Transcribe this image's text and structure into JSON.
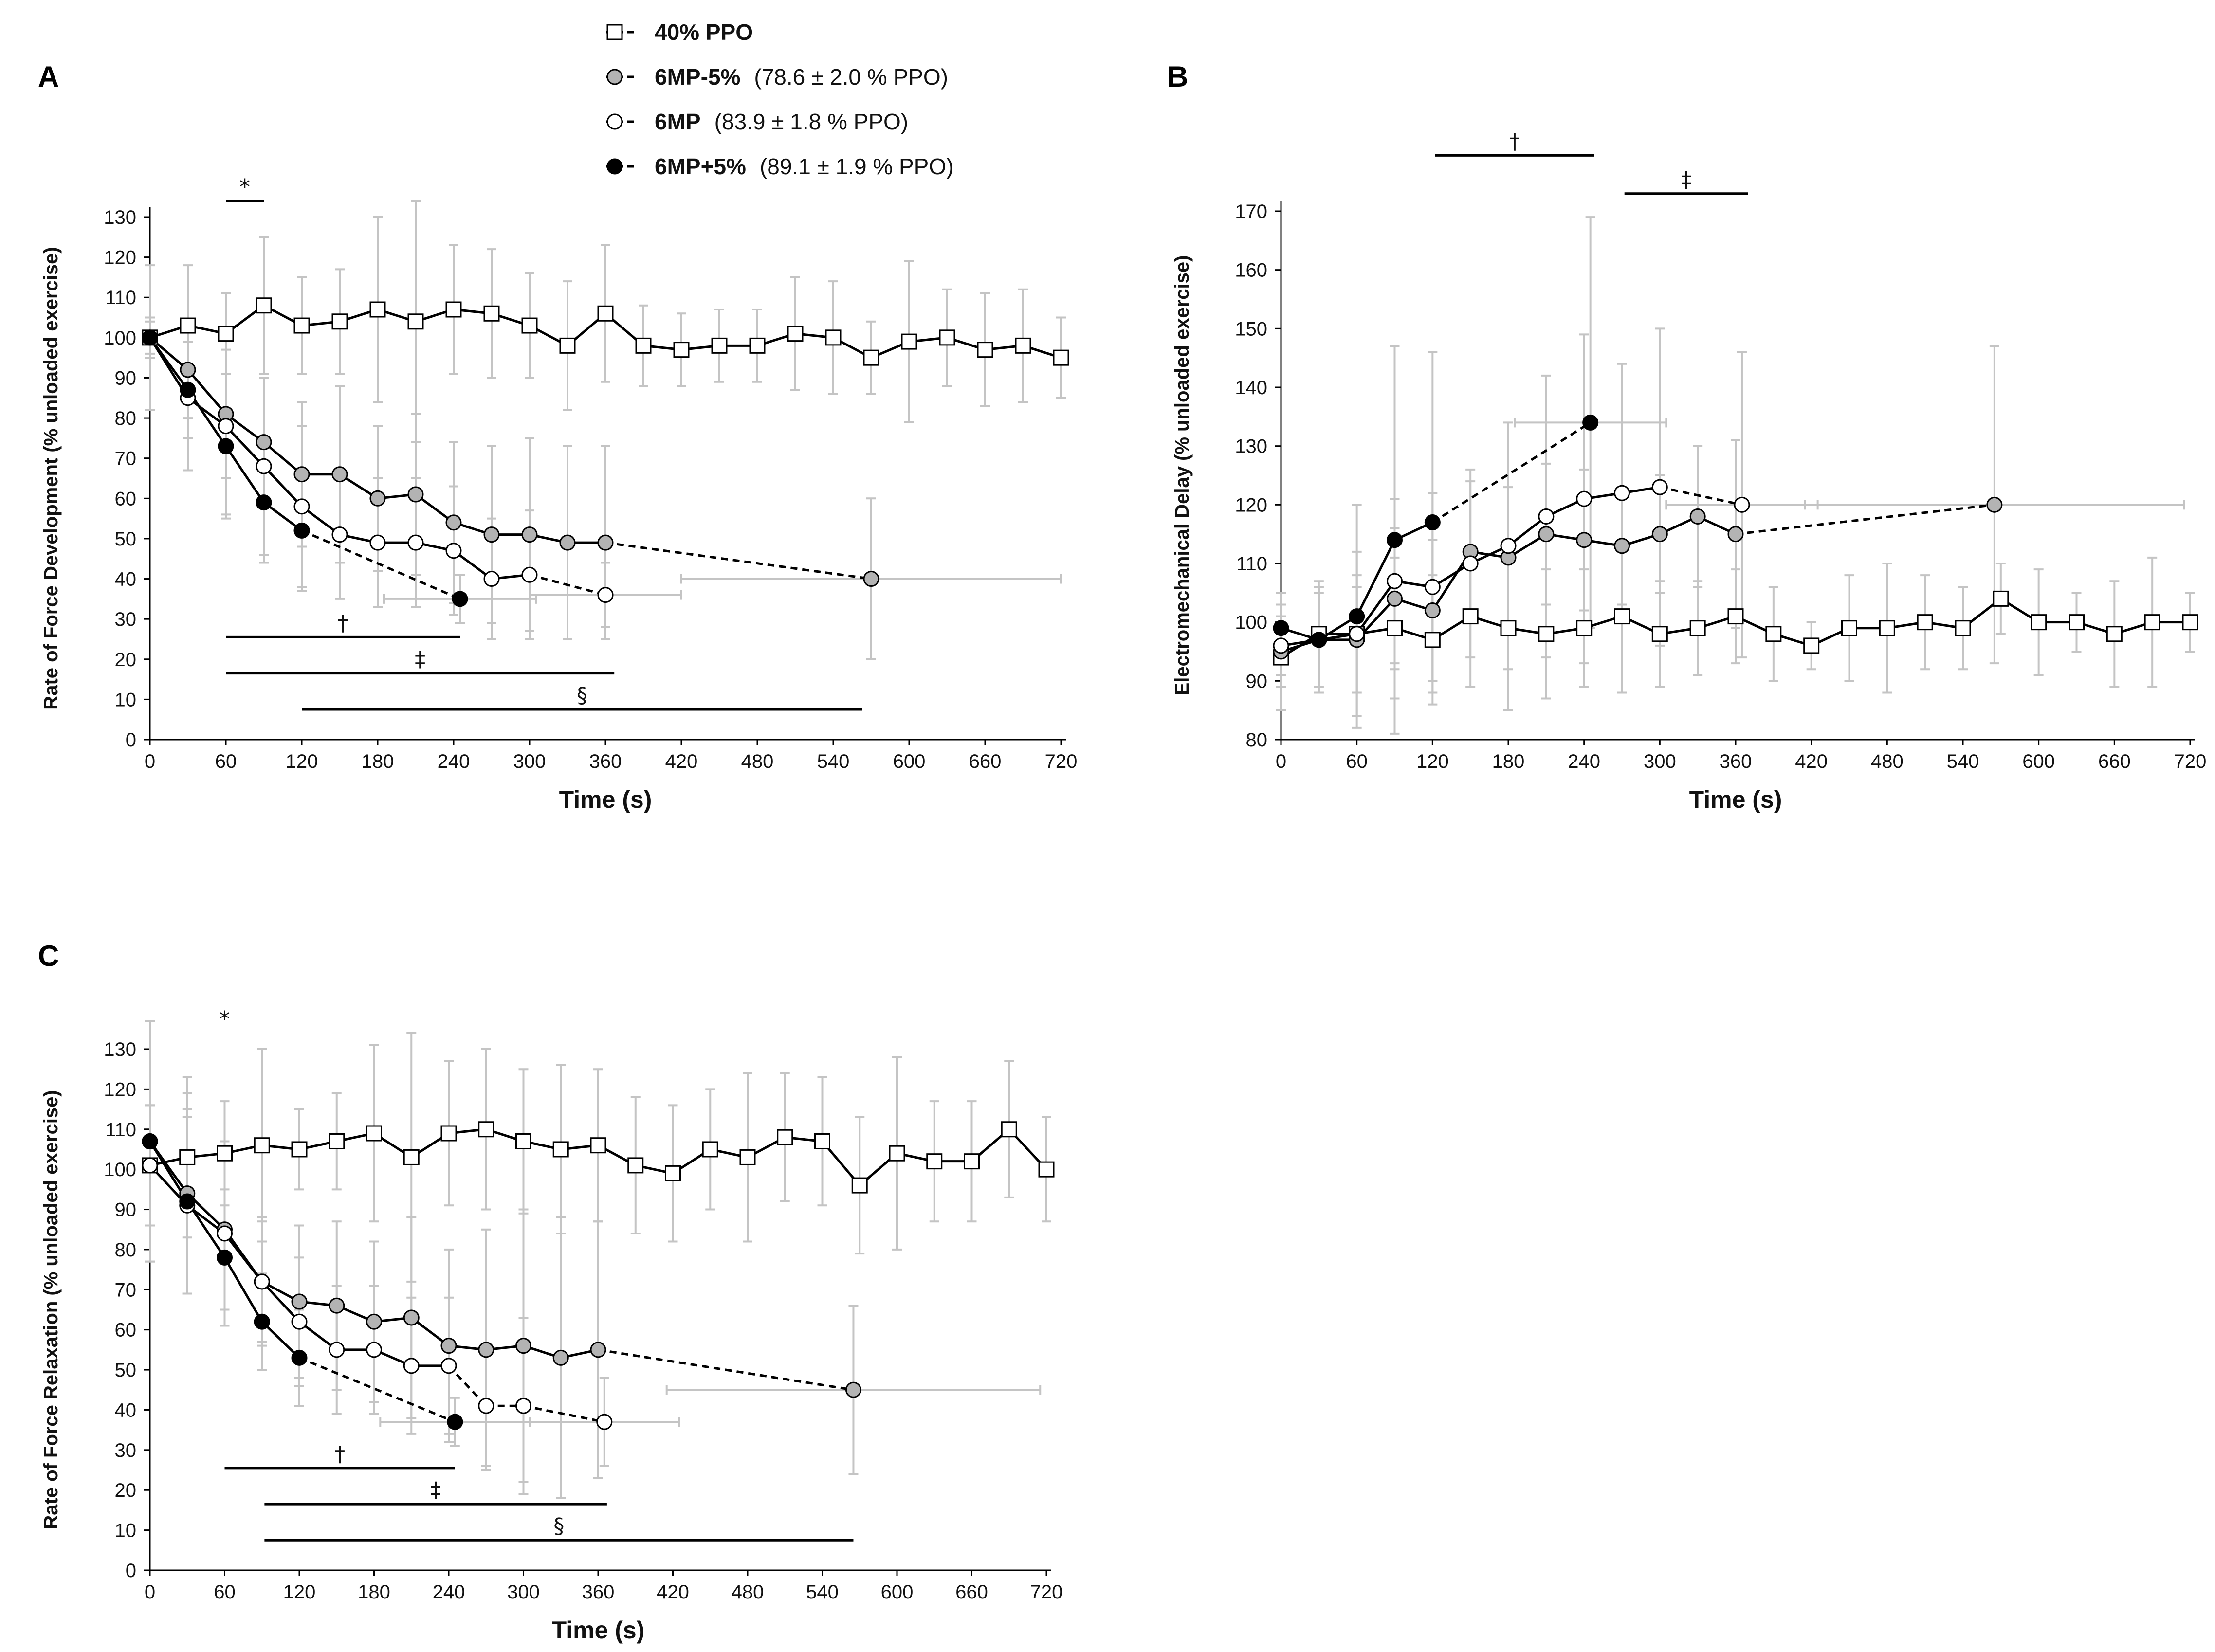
{
  "legend": [
    {
      "key": "ppo40",
      "name": "40% PPO",
      "desc": "",
      "marker": "square",
      "fill": "#ffffff"
    },
    {
      "key": "m5",
      "name": "6MP-5%",
      "desc": "(78.6 ± 2.0 % PPO)",
      "marker": "circle",
      "fill": "#b3b3b3"
    },
    {
      "key": "mp",
      "name": "6MP",
      "desc": "(83.9 ± 1.8 % PPO)",
      "marker": "circle",
      "fill": "#ffffff"
    },
    {
      "key": "p5",
      "name": "6MP+5%",
      "desc": "(89.1 ± 1.9 % PPO)",
      "marker": "circle",
      "fill": "#000000"
    }
  ],
  "colors": {
    "line": "#000000",
    "error_bar": "#c4c4c4",
    "gray_marker": "#b3b3b3"
  },
  "chart_data": [
    {
      "panel": "A",
      "type": "line",
      "xlabel": "Time (s)",
      "ylabel": "Rate of Force Development (% unloaded exercise)",
      "xlim": [
        0,
        720
      ],
      "ylim": [
        0,
        130
      ],
      "xticks": [
        "0",
        "60",
        "120",
        "180",
        "240",
        "300",
        "360",
        "420",
        "480",
        "540",
        "600",
        "660",
        "720"
      ],
      "yticks": [
        "0",
        "10",
        "20",
        "30",
        "40",
        "50",
        "60",
        "70",
        "80",
        "90",
        "100",
        "110",
        "120",
        "130"
      ],
      "series": [
        {
          "key": "ppo40",
          "x": [
            0,
            30,
            60,
            90,
            120,
            150,
            180,
            210,
            240,
            270,
            300,
            330,
            360,
            390,
            420,
            450,
            480,
            510,
            540,
            570,
            600,
            630,
            660,
            690,
            720
          ],
          "y": [
            100,
            103,
            101,
            108,
            103,
            104,
            107,
            104,
            107,
            106,
            103,
            98,
            106,
            98,
            97,
            98,
            98,
            101,
            100,
            95,
            99,
            100,
            97,
            98,
            95
          ],
          "err": [
            18,
            15,
            10,
            17,
            12,
            13,
            23,
            30,
            16,
            16,
            13,
            16,
            17,
            10,
            9,
            9,
            9,
            14,
            14,
            9,
            20,
            12,
            14,
            14,
            10
          ]
        },
        {
          "key": "m5",
          "x": [
            0,
            30,
            60,
            90,
            120,
            150,
            180,
            210,
            240,
            270,
            300,
            330,
            360,
            570
          ],
          "y": [
            100,
            92,
            81,
            74,
            66,
            66,
            60,
            61,
            54,
            51,
            51,
            49,
            49,
            40
          ],
          "err": [
            5,
            12,
            16,
            16,
            18,
            22,
            18,
            20,
            20,
            22,
            24,
            24,
            24,
            20
          ],
          "dashed_from": 360,
          "xerr_last": 150
        },
        {
          "key": "mp",
          "x": [
            0,
            30,
            60,
            90,
            120,
            150,
            180,
            210,
            240,
            270,
            300,
            360
          ],
          "y": [
            100,
            85,
            78,
            68,
            58,
            51,
            49,
            49,
            47,
            40,
            41,
            36
          ],
          "err": [
            5,
            18,
            22,
            22,
            20,
            16,
            16,
            16,
            16,
            15,
            16,
            8
          ],
          "dashed_from": 300,
          "xerr_last": 60
        },
        {
          "key": "p5",
          "x": [
            0,
            30,
            60,
            90,
            120,
            245
          ],
          "y": [
            100,
            87,
            73,
            59,
            52,
            35
          ],
          "err": [
            4,
            12,
            18,
            15,
            15,
            6
          ],
          "dashed_from": 120,
          "xerr_last": 60
        }
      ],
      "annotations": [
        {
          "symbol": "*",
          "x1": 60,
          "x2": 90,
          "y": 134
        },
        {
          "symbol": "†",
          "x1": 60,
          "x2": 245,
          "y": 25.5
        },
        {
          "symbol": "‡",
          "x1": 60,
          "x2": 367,
          "y": 16.5
        },
        {
          "symbol": "§",
          "x1": 120,
          "x2": 563,
          "y": 7.5
        }
      ]
    },
    {
      "panel": "B",
      "type": "line",
      "xlabel": "Time (s)",
      "ylabel": "Electromechanical Delay (% unloaded exercise)",
      "xlim": [
        0,
        720
      ],
      "ylim": [
        80,
        170
      ],
      "xticks": [
        "0",
        "60",
        "120",
        "180",
        "240",
        "300",
        "360",
        "420",
        "480",
        "540",
        "600",
        "660",
        "720"
      ],
      "yticks": [
        "80",
        "90",
        "100",
        "110",
        "120",
        "130",
        "140",
        "150",
        "160",
        "170"
      ],
      "series": [
        {
          "key": "ppo40",
          "x": [
            0,
            30,
            60,
            90,
            120,
            150,
            180,
            210,
            240,
            270,
            300,
            330,
            360,
            390,
            420,
            450,
            480,
            510,
            540,
            570,
            600,
            630,
            660,
            690,
            720
          ],
          "y": [
            94,
            98,
            98,
            99,
            97,
            101,
            99,
            98,
            99,
            101,
            98,
            99,
            101,
            98,
            96,
            99,
            99,
            100,
            99,
            104,
            100,
            100,
            98,
            100,
            100
          ],
          "err": [
            9,
            9,
            10,
            12,
            11,
            12,
            14,
            11,
            10,
            13,
            9,
            8,
            8,
            8,
            4,
            9,
            11,
            8,
            7,
            6,
            9,
            5,
            9,
            11,
            5
          ],
          "dashed_from": 999
        },
        {
          "key": "m5",
          "x": [
            0,
            30,
            60,
            90,
            120,
            150,
            180,
            210,
            240,
            270,
            300,
            330,
            360,
            565
          ],
          "y": [
            95,
            97,
            97,
            104,
            102,
            112,
            111,
            115,
            114,
            113,
            115,
            118,
            115,
            120
          ],
          "err": [
            6,
            8,
            9,
            12,
            12,
            12,
            12,
            12,
            12,
            10,
            10,
            12,
            16,
            27
          ],
          "dashed_from": 360,
          "xerr_last": 150
        },
        {
          "key": "mp",
          "x": [
            0,
            30,
            60,
            90,
            120,
            150,
            180,
            210,
            240,
            270,
            300,
            365
          ],
          "y": [
            96,
            97,
            98,
            107,
            106,
            110,
            113,
            118,
            121,
            122,
            123,
            120
          ],
          "err": [
            5,
            9,
            14,
            14,
            16,
            16,
            21,
            24,
            28,
            22,
            27,
            26
          ],
          "dashed_from": 300,
          "xerr_last": 60
        },
        {
          "key": "p5",
          "x": [
            0,
            30,
            60,
            90,
            120,
            245
          ],
          "y": [
            99,
            97,
            101,
            114,
            117,
            134
          ],
          "err": [
            6,
            9,
            19,
            33,
            29,
            35
          ],
          "dashed_from": 120,
          "xerr_last": 60
        }
      ],
      "annotations": [
        {
          "symbol": "†",
          "x1": 122,
          "x2": 248,
          "y": 179.5
        },
        {
          "symbol": "‡",
          "x1": 272,
          "x2": 370,
          "y": 173
        }
      ]
    },
    {
      "panel": "C",
      "type": "line",
      "xlabel": "Time (s)",
      "ylabel": "Rate of Force Relaxation (% unloaded exercise)",
      "xlim": [
        0,
        720
      ],
      "ylim": [
        0,
        130
      ],
      "xticks": [
        "0",
        "60",
        "120",
        "180",
        "240",
        "300",
        "360",
        "420",
        "480",
        "540",
        "600",
        "660",
        "720"
      ],
      "yticks": [
        "0",
        "10",
        "20",
        "30",
        "40",
        "50",
        "60",
        "70",
        "80",
        "90",
        "100",
        "110",
        "120",
        "130"
      ],
      "series": [
        {
          "key": "ppo40",
          "x": [
            0,
            30,
            60,
            90,
            120,
            150,
            180,
            210,
            240,
            270,
            300,
            330,
            360,
            390,
            420,
            450,
            480,
            510,
            540,
            570,
            600,
            630,
            660,
            690,
            720
          ],
          "y": [
            101,
            103,
            104,
            106,
            105,
            107,
            109,
            103,
            109,
            110,
            107,
            105,
            106,
            101,
            99,
            105,
            103,
            108,
            107,
            96,
            104,
            102,
            102,
            110,
            100
          ],
          "err": [
            15,
            20,
            13,
            24,
            10,
            12,
            22,
            31,
            18,
            20,
            18,
            21,
            19,
            17,
            17,
            15,
            21,
            16,
            16,
            17,
            24,
            15,
            15,
            17,
            13
          ],
          "dashed_from": 999
        },
        {
          "key": "m5",
          "x": [
            0,
            30,
            60,
            90,
            120,
            150,
            180,
            210,
            240,
            270,
            300,
            330,
            360,
            565
          ],
          "y": [
            107,
            94,
            85,
            72,
            67,
            66,
            62,
            63,
            56,
            55,
            56,
            53,
            55,
            45
          ],
          "err": [
            30,
            25,
            20,
            15,
            19,
            21,
            20,
            25,
            24,
            30,
            34,
            35,
            32,
            21
          ],
          "dashed_from": 360,
          "xerr_last": 150
        },
        {
          "key": "mp",
          "x": [
            0,
            30,
            60,
            90,
            120,
            150,
            180,
            210,
            240,
            270,
            300,
            365
          ],
          "y": [
            101,
            91,
            84,
            72,
            62,
            55,
            55,
            51,
            51,
            41,
            41,
            37
          ],
          "err": [
            15,
            22,
            23,
            16,
            16,
            16,
            16,
            17,
            17,
            15,
            22,
            11
          ],
          "dashed_from": 240,
          "xerr_last": 60
        },
        {
          "key": "p5",
          "x": [
            0,
            30,
            60,
            90,
            120,
            245
          ],
          "y": [
            107,
            92,
            78,
            62,
            53,
            37
          ],
          "err": [
            30,
            23,
            17,
            12,
            12,
            6
          ],
          "dashed_from": 120,
          "xerr_last": 60
        }
      ],
      "annotations": [
        {
          "symbol": "*",
          "x1": 60,
          "x2": 60,
          "y": 134,
          "no_line": true
        },
        {
          "symbol": "†",
          "x1": 60,
          "x2": 245,
          "y": 25.5
        },
        {
          "symbol": "‡",
          "x1": 92,
          "x2": 367,
          "y": 16.5
        },
        {
          "symbol": "§",
          "x1": 92,
          "x2": 565,
          "y": 7.5
        }
      ]
    }
  ]
}
